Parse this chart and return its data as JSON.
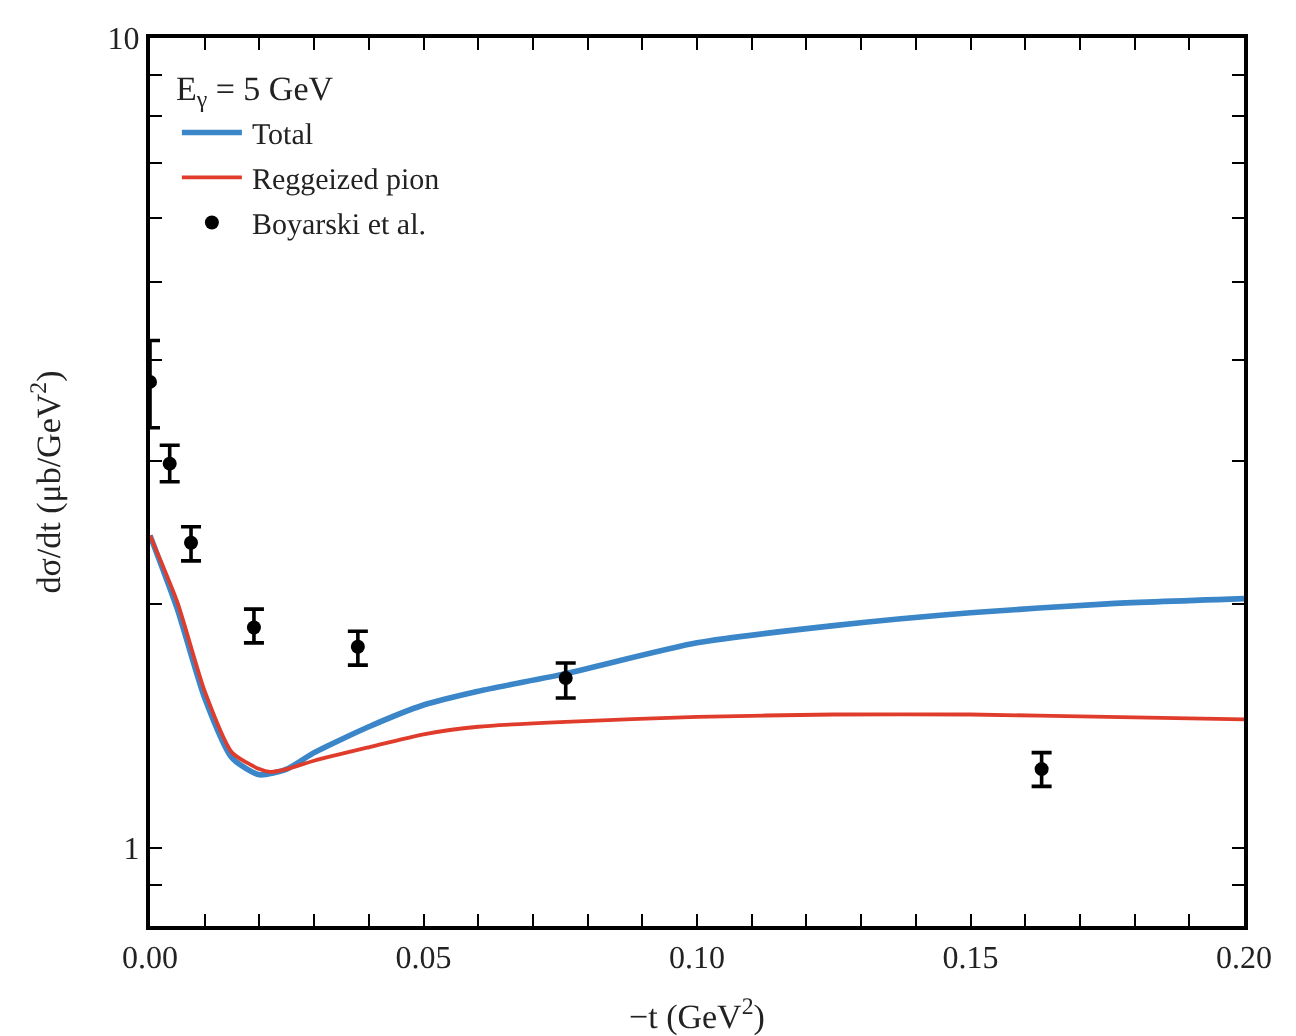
{
  "chart_data": {
    "type": "line",
    "legend_title": "E$_{γ}$ = 5 GeV",
    "xlabel": "−t (GeV$^{2}$)",
    "ylabel": "dσ/dt (μb/GeV$^{2}$)",
    "log": "y",
    "grid": false,
    "legend": "top left",
    "xlim": [
      0,
      0.2
    ],
    "ylim": [
      0.8,
      10
    ],
    "xticks": [
      {
        "value": 0,
        "label": "0.00"
      },
      {
        "value": 0.01,
        "label": null
      },
      {
        "value": 0.02,
        "label": null
      },
      {
        "value": 0.03,
        "label": null
      },
      {
        "value": 0.04,
        "label": null
      },
      {
        "value": 0.05,
        "label": "0.05"
      },
      {
        "value": 0.06,
        "label": null
      },
      {
        "value": 0.07,
        "label": null
      },
      {
        "value": 0.08,
        "label": null
      },
      {
        "value": 0.09,
        "label": null
      },
      {
        "value": 0.1,
        "label": "0.10"
      },
      {
        "value": 0.11,
        "label": null
      },
      {
        "value": 0.12,
        "label": null
      },
      {
        "value": 0.13,
        "label": null
      },
      {
        "value": 0.14,
        "label": null
      },
      {
        "value": 0.15,
        "label": "0.15"
      },
      {
        "value": 0.16,
        "label": null
      },
      {
        "value": 0.17,
        "label": null
      },
      {
        "value": 0.18,
        "label": null
      },
      {
        "value": 0.19,
        "label": null
      },
      {
        "value": 0.2,
        "label": "0.20"
      }
    ],
    "yticks": [
      {
        "value": 0.8,
        "label": null
      },
      {
        "value": 0.9,
        "label": null
      },
      1,
      {
        "value": 2,
        "label": null
      },
      {
        "value": 3,
        "label": null
      },
      {
        "value": 4,
        "label": null
      },
      {
        "value": 5,
        "label": null
      },
      {
        "value": 6,
        "label": null
      },
      {
        "value": 7,
        "label": null
      },
      {
        "value": 8,
        "label": null
      },
      {
        "value": 9,
        "label": null
      },
      10
    ],
    "series": [
      {
        "name": "Total",
        "color": "#3a86c8",
        "marker": "none",
        "line_style": "solid",
        "x": [
          0,
          0.005,
          0.01,
          0.015,
          0.02,
          0.025,
          0.03,
          0.04,
          0.05,
          0.06,
          0.076,
          0.1,
          0.125,
          0.15,
          0.175,
          0.2
        ],
        "values": [
          2.43,
          1.97,
          1.53,
          1.29,
          1.23,
          1.25,
          1.31,
          1.41,
          1.5,
          1.56,
          1.64,
          1.79,
          1.88,
          1.95,
          2.0,
          2.03
        ]
      },
      {
        "name": "Reggeized pion",
        "color": "#e03c2c",
        "marker": "none",
        "line_style": "solid",
        "x": [
          0,
          0.005,
          0.01,
          0.015,
          0.02,
          0.022,
          0.025,
          0.03,
          0.04,
          0.05,
          0.06,
          0.076,
          0.1,
          0.125,
          0.15,
          0.175,
          0.2
        ],
        "values": [
          2.43,
          2.01,
          1.56,
          1.31,
          1.25,
          1.24,
          1.25,
          1.28,
          1.33,
          1.38,
          1.41,
          1.43,
          1.45,
          1.46,
          1.46,
          1.45,
          1.44
        ]
      },
      {
        "name": "Boyarski et al.",
        "type": "scatter",
        "color": "#000000",
        "marker": "circle",
        "x": [
          0,
          0.0036,
          0.0075,
          0.019,
          0.038,
          0.076,
          0.163
        ],
        "values": [
          3.76,
          2.98,
          2.38,
          1.87,
          1.77,
          1.62,
          1.25
        ],
        "errors": [
          [
            3.3,
            4.23
          ],
          [
            2.83,
            3.14
          ],
          [
            2.26,
            2.49
          ],
          [
            1.79,
            1.97
          ],
          [
            1.68,
            1.85
          ],
          [
            1.53,
            1.69
          ],
          [
            1.19,
            1.31
          ]
        ]
      }
    ]
  }
}
